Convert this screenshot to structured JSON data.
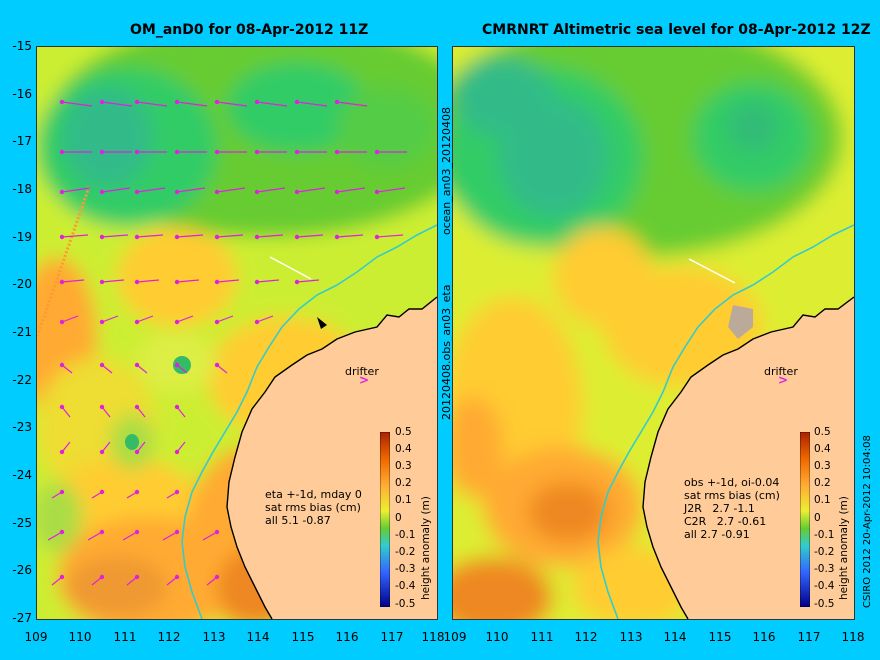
{
  "left_panel": {
    "title": "OM_anD0 for 08-Apr-2012 11Z",
    "side_label": "20120408.obs_an03_eta",
    "stats": [
      "eta +-1d, mday 0",
      "sat rms bias (cm)",
      "all 5.1 -0.87"
    ],
    "drifter_label": "drifter"
  },
  "right_panel": {
    "title": "CMRNRT Altimetric sea level  for 08-Apr-2012 12Z",
    "side_label": "ocean_an03_20120408",
    "stats": [
      "obs +-1d, oi-0.04",
      "sat rms bias (cm)",
      "J2R   2.7 -1.1",
      "C2R   2.7 -0.61",
      "all 2.7 -0.91"
    ],
    "drifter_label": "drifter"
  },
  "y_axis_labels": [
    "-15",
    "-16",
    "-17",
    "-18",
    "-19",
    "-20",
    "-21",
    "-22",
    "-23",
    "-24",
    "-25",
    "-26",
    "-27"
  ],
  "x_axis_labels": [
    "109",
    "110",
    "111",
    "112",
    "113",
    "114",
    "115",
    "116",
    "117",
    "118"
  ],
  "colorbar": {
    "title": "height anomaly (m)",
    "ticks": [
      "0.5",
      "0.4",
      "0.3",
      "0.2",
      "0.1",
      "0",
      "-0.1",
      "-0.2",
      "-0.3",
      "-0.4",
      "-0.5"
    ]
  },
  "credit": "CSIRO 2012  20-Apr-2012 10:04:08",
  "colors": {
    "background": "#00ccff",
    "land": "#ffcc99",
    "arrows": "#e020e0",
    "isobath": "#33cccc"
  }
}
